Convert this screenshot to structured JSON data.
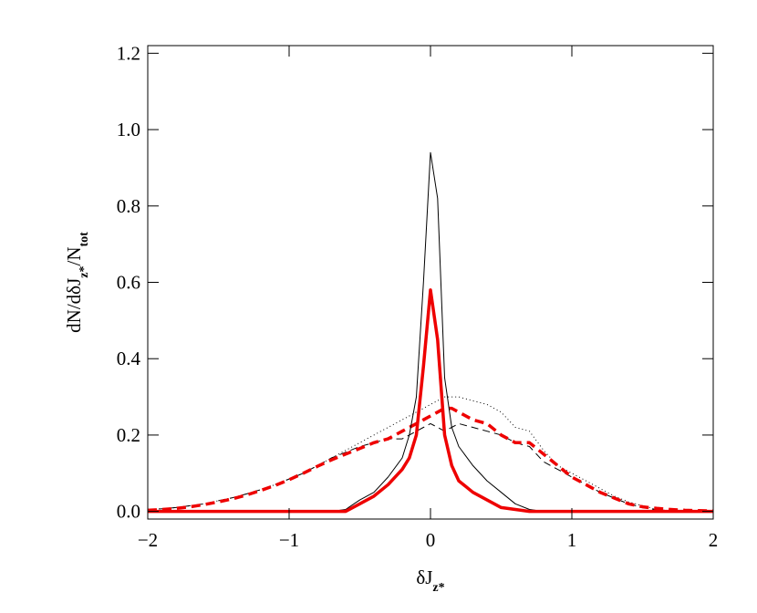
{
  "chart_data": {
    "type": "line",
    "xlabel": [
      "δJ",
      "z*"
    ],
    "ylabel": [
      "dN/dδJ",
      "z*",
      "/N",
      "tot"
    ],
    "x": [
      -2,
      -1.9,
      -1.8,
      -1.7,
      -1.6,
      -1.5,
      -1.4,
      -1.3,
      -1.2,
      -1.1,
      -1.0,
      -0.9,
      -0.8,
      -0.7,
      -0.6,
      -0.5,
      -0.4,
      -0.3,
      -0.2,
      -0.15,
      -0.1,
      -0.05,
      0,
      0.05,
      0.1,
      0.15,
      0.2,
      0.3,
      0.4,
      0.5,
      0.6,
      0.7,
      0.8,
      0.9,
      1.0,
      1.1,
      1.2,
      1.3,
      1.4,
      1.5,
      1.6,
      1.7,
      1.8,
      1.9,
      2
    ],
    "series": [
      {
        "color": "#000000",
        "width": 1,
        "dash": "1,3",
        "values": [
          0.005,
          0.007,
          0.01,
          0.015,
          0.02,
          0.028,
          0.036,
          0.046,
          0.057,
          0.07,
          0.085,
          0.1,
          0.12,
          0.14,
          0.16,
          0.18,
          0.2,
          0.22,
          0.24,
          0.25,
          0.26,
          0.27,
          0.28,
          0.29,
          0.3,
          0.3,
          0.3,
          0.29,
          0.28,
          0.26,
          0.22,
          0.21,
          0.16,
          0.12,
          0.1,
          0.08,
          0.06,
          0.04,
          0.025,
          0.015,
          0.005,
          0.002,
          0,
          0,
          0
        ]
      },
      {
        "color": "#000000",
        "width": 1,
        "dash": "8,5",
        "values": [
          0.005,
          0.007,
          0.01,
          0.015,
          0.02,
          0.028,
          0.036,
          0.046,
          0.057,
          0.07,
          0.085,
          0.1,
          0.12,
          0.14,
          0.155,
          0.17,
          0.18,
          0.19,
          0.19,
          0.2,
          0.21,
          0.22,
          0.23,
          0.22,
          0.21,
          0.22,
          0.23,
          0.22,
          0.21,
          0.2,
          0.18,
          0.17,
          0.13,
          0.11,
          0.09,
          0.07,
          0.05,
          0.035,
          0.02,
          0.01,
          0.004,
          0.001,
          0,
          0,
          0
        ]
      },
      {
        "color": "#ee0000",
        "width": 3.5,
        "dash": "10,6",
        "values": [
          0.003,
          0.005,
          0.008,
          0.012,
          0.018,
          0.025,
          0.033,
          0.043,
          0.055,
          0.068,
          0.083,
          0.1,
          0.118,
          0.135,
          0.15,
          0.165,
          0.18,
          0.19,
          0.21,
          0.22,
          0.23,
          0.24,
          0.25,
          0.26,
          0.27,
          0.27,
          0.26,
          0.24,
          0.23,
          0.2,
          0.18,
          0.18,
          0.15,
          0.12,
          0.09,
          0.07,
          0.05,
          0.035,
          0.02,
          0.012,
          0.008,
          0.005,
          0.003,
          0.002,
          0.001
        ]
      },
      {
        "color": "#000000",
        "width": 1,
        "dash": "",
        "values": [
          0,
          0,
          0,
          0,
          0,
          0,
          0,
          0,
          0,
          0,
          0,
          0,
          0,
          0,
          0.005,
          0.03,
          0.05,
          0.09,
          0.14,
          0.2,
          0.3,
          0.6,
          0.94,
          0.82,
          0.35,
          0.22,
          0.17,
          0.12,
          0.08,
          0.05,
          0.02,
          0.005,
          0,
          0,
          0,
          0,
          0,
          0,
          0,
          0,
          0,
          0,
          0,
          0,
          0
        ]
      },
      {
        "color": "#ee0000",
        "width": 3.5,
        "dash": "",
        "values": [
          0,
          0,
          0,
          0,
          0,
          0,
          0,
          0,
          0,
          0,
          0,
          0,
          0,
          0,
          0,
          0.02,
          0.04,
          0.07,
          0.11,
          0.14,
          0.2,
          0.38,
          0.58,
          0.45,
          0.2,
          0.12,
          0.08,
          0.05,
          0.03,
          0.01,
          0.005,
          0,
          0,
          0,
          0,
          0,
          0,
          0,
          0,
          0,
          0,
          0,
          0,
          0,
          0
        ]
      }
    ],
    "xlim": [
      -2,
      2
    ],
    "xticks": [
      {
        "value": -2,
        "label": "−2"
      },
      {
        "value": -1,
        "label": "−1"
      },
      0,
      1,
      2
    ],
    "ylim": [
      -0.02,
      1.22
    ],
    "yticks": [
      {
        "value": 0,
        "label": "0.0"
      },
      0.2,
      0.4,
      0.6,
      0.8,
      {
        "value": 1,
        "label": "1.0"
      },
      1.2
    ]
  }
}
